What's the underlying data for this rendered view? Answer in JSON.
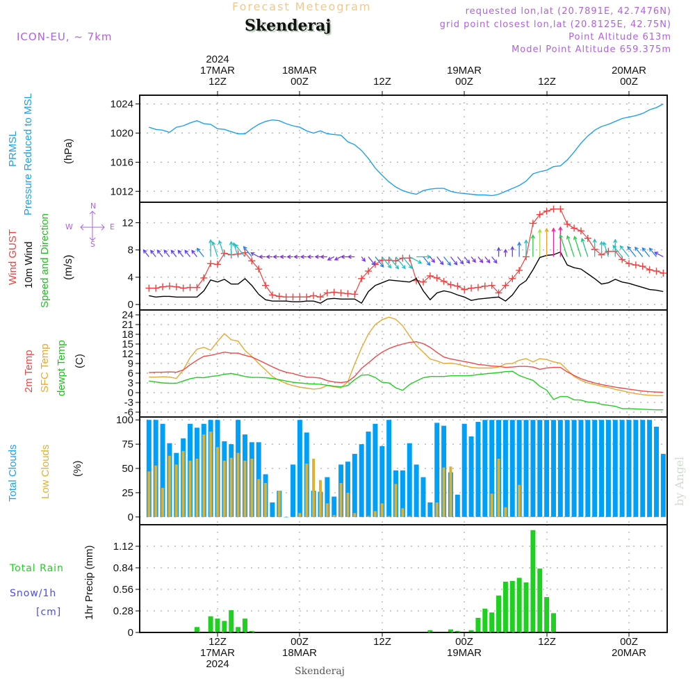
{
  "header": {
    "title": "Forecast Meteogram",
    "station": "Skenderaj",
    "model": "ICON-EU, ~ 7km",
    "requested": "requested lon,lat (20.7891E, 42.7476N)",
    "grid_point": "grid point closest lon,lat (20.8125E, 42.75N)",
    "point_altitude": "Point Altitude 613m",
    "model_altitude": "Model Point Altitude 659.375m"
  },
  "top_axis": [
    {
      "l1": "2024",
      "l2": "17MAR",
      "l3": "12Z"
    },
    {
      "l1": "",
      "l2": "18MAR",
      "l3": "00Z"
    },
    {
      "l1": "",
      "l2": "",
      "l3": "12Z"
    },
    {
      "l1": "",
      "l2": "19MAR",
      "l3": "00Z"
    },
    {
      "l1": "",
      "l2": "",
      "l3": "12Z"
    },
    {
      "l1": "",
      "l2": "20MAR",
      "l3": "00Z"
    }
  ],
  "bottom_axis": [
    {
      "l1": "12Z",
      "l2": "17MAR",
      "l3": "2024"
    },
    {
      "l1": "00Z",
      "l2": "18MAR",
      "l3": ""
    },
    {
      "l1": "12Z",
      "l2": "",
      "l3": ""
    },
    {
      "l1": "00Z",
      "l2": "19MAR",
      "l3": ""
    },
    {
      "l1": "12Z",
      "l2": "",
      "l3": ""
    },
    {
      "l1": "00Z",
      "l2": "20MAR",
      "l3": ""
    }
  ],
  "labels": {
    "prmsl": "PRMSL",
    "pressure": "Pressure Reduced to MSL",
    "hpa": "(hPa)",
    "gust": "Wind GUST",
    "wind10": "10m Wind",
    "speeddir": "Speed and Direction",
    "ms": "(m/s)",
    "t2m": "2m Temp",
    "tsfc": "SFC Temp",
    "dewpt": "dewpt Temp",
    "c": "(C)",
    "total_clouds": "Total Clouds",
    "low_clouds": "Low Clouds",
    "pct": "(%)",
    "total_rain": "Total   Rain",
    "snow": "Snow/1h",
    "cm": "[cm]",
    "precip": "1hr Precip (mm)",
    "compass_n": "N",
    "compass_s": "S",
    "compass_w": "W",
    "compass_e": "E",
    "footer_station": "Skenderaj",
    "watermark": "by Angel"
  },
  "colors": {
    "pressure": "#1ea0f0",
    "gust": "#f04040",
    "wind": "#000000",
    "t2m": "#f04848",
    "tsfc": "#e8a830",
    "dewpt": "#20d020",
    "total_clouds": "#00a0f8",
    "low_clouds": "#e0b030",
    "rain": "#20d020",
    "header": "#b060e0"
  },
  "chart_data": [
    {
      "type": "line",
      "title": "PRMSL Pressure Reduced to MSL",
      "ylabel": "(hPa)",
      "ylim": [
        1010.5,
        1025.2
      ],
      "yticks": [
        1012,
        1016,
        1020,
        1024
      ],
      "x_hours_start": "17MAR 02Z",
      "x_step_hours": 1,
      "series": [
        {
          "name": "PRMSL",
          "values": [
            1020.8,
            1020.5,
            1020.4,
            1020.1,
            1020.8,
            1021.0,
            1021.4,
            1021.7,
            1021.3,
            1021.2,
            1020.6,
            1020.5,
            1020.2,
            1019.9,
            1019.9,
            1020.6,
            1021.2,
            1021.6,
            1021.8,
            1021.7,
            1021.3,
            1021.0,
            1020.8,
            1020.3,
            1020.0,
            1020.3,
            1019.9,
            1019.8,
            1019.7,
            1018.8,
            1018.4,
            1017.6,
            1016.5,
            1015.2,
            1014.2,
            1013.3,
            1012.6,
            1012.1,
            1011.8,
            1011.6,
            1012.1,
            1012.3,
            1012.4,
            1012.4,
            1012.0,
            1011.8,
            1011.7,
            1011.6,
            1011.5,
            1011.5,
            1011.4,
            1011.6,
            1012.0,
            1012.4,
            1012.8,
            1013.4,
            1014.4,
            1014.7,
            1014.9,
            1015.4,
            1015.5,
            1016.3,
            1017.4,
            1018.6,
            1019.6,
            1020.4,
            1020.9,
            1021.2,
            1021.6,
            1022.0,
            1022.2,
            1022.4,
            1022.7,
            1023.2,
            1023.5,
            1024.0
          ]
        }
      ]
    },
    {
      "type": "line",
      "title": "Wind GUST / 10m Wind Speed and Direction",
      "ylabel": "(m/s)",
      "ylim": [
        -0.8,
        15.0
      ],
      "yticks": [
        0,
        4,
        8,
        12
      ],
      "series": [
        {
          "name": "Wind GUST",
          "values": [
            2.4,
            2.4,
            2.6,
            2.7,
            2.6,
            2.4,
            2.5,
            2.5,
            3.9,
            6.0,
            5.9,
            7.5,
            7.3,
            7.4,
            7.6,
            6.4,
            5.2,
            2.8,
            1.4,
            1.2,
            1.1,
            1.1,
            1.1,
            1.1,
            1.3,
            1.1,
            1.7,
            1.8,
            1.7,
            1.6,
            1.5,
            3.8,
            4.9,
            5.9,
            6.5,
            6.5,
            6.4,
            6.8,
            6.8,
            3.5,
            3.3,
            4.2,
            3.9,
            3.4,
            2.9,
            2.7,
            2.2,
            2.4,
            2.5,
            2.7,
            2.8,
            1.7,
            2.8,
            3.8,
            5.0,
            7.0,
            11.9,
            13.2,
            13.7,
            14.0,
            14.0,
            11.8,
            11.2,
            10.8,
            9.7,
            8.1,
            7.3,
            7.8,
            7.8,
            6.6,
            6.0,
            5.8,
            5.6,
            5.1,
            4.9,
            4.6
          ]
        },
        {
          "name": "10m Wind",
          "values": [
            1.3,
            1.1,
            1.2,
            1.2,
            1.1,
            1.1,
            1.1,
            1.1,
            2.0,
            3.6,
            3.3,
            3.7,
            3.0,
            3.0,
            3.8,
            2.8,
            1.5,
            0.7,
            0.5,
            0.5,
            0.5,
            0.4,
            0.4,
            0.5,
            0.5,
            0.2,
            0.8,
            0.9,
            0.8,
            0.8,
            0.8,
            0.2,
            1.9,
            2.8,
            3.2,
            3.6,
            3.5,
            3.4,
            3.3,
            3.8,
            2.0,
            0.7,
            1.7,
            2.0,
            1.8,
            1.4,
            1.1,
            0.6,
            0.8,
            0.9,
            1.0,
            1.1,
            0.5,
            1.4,
            2.8,
            3.5,
            5.1,
            6.9,
            7.2,
            7.3,
            7.7,
            5.8,
            5.4,
            5.2,
            4.5,
            3.8,
            3.0,
            3.2,
            3.7,
            3.3,
            3.1,
            2.8,
            2.5,
            2.2,
            2.1,
            1.9
          ]
        },
        {
          "name": "Direction",
          "values": [
            "NE",
            "NE",
            "NE",
            "NE",
            "NE",
            "NE",
            "NE",
            "NE",
            "NE",
            "N",
            "NNE",
            "NNE",
            "N",
            "NNE",
            "NE",
            "NE",
            "ENE",
            "E",
            "E",
            "E",
            "E",
            "E",
            "E",
            "E",
            "E",
            "E",
            "E",
            "ESE",
            "ESE",
            "E",
            "E",
            "SW",
            "SW",
            "SW",
            "SW",
            "SW",
            "SW",
            "SW",
            "WSW",
            "W",
            "SW",
            "SW",
            "SW",
            "SW",
            "SW",
            "SW",
            "SW",
            "SW",
            "SW",
            "SW",
            "SW",
            "N",
            "N",
            "N",
            "N",
            "N",
            "N",
            "N",
            "N",
            "N",
            "N",
            "NNE",
            "NNE",
            "NNE",
            "NNE",
            "N",
            "N",
            "NNE",
            "N",
            "NE",
            "NE",
            "NE",
            "NE",
            "NE",
            "NE",
            "ENE"
          ]
        }
      ]
    },
    {
      "type": "line",
      "title": "2m Temp / SFC Temp / dewpt Temp",
      "ylabel": "(C)",
      "ylim": [
        -7.5,
        25.5
      ],
      "yticks": [
        -6,
        -3,
        0,
        3,
        6,
        9,
        12,
        15,
        18,
        21,
        24
      ],
      "series": [
        {
          "name": "2m Temp",
          "values": [
            6.2,
            6.3,
            6.3,
            6.4,
            6.3,
            7.0,
            8.6,
            10.0,
            11.2,
            11.5,
            12.0,
            12.5,
            12.2,
            12.2,
            11.5,
            11.0,
            10.0,
            9.0,
            8.0,
            7.0,
            6.3,
            5.9,
            5.3,
            4.8,
            4.7,
            4.5,
            3.7,
            3.3,
            3.1,
            3.4,
            5.0,
            7.5,
            9.2,
            11.0,
            12.5,
            13.6,
            14.4,
            15.0,
            15.5,
            15.7,
            15.1,
            14.0,
            12.4,
            11.0,
            10.4,
            10.0,
            9.6,
            9.2,
            8.7,
            8.5,
            8.2,
            8.1,
            7.8,
            7.9,
            8.1,
            8.1,
            7.9,
            7.2,
            7.6,
            7.8,
            7.8,
            6.4,
            5.3,
            4.3,
            3.6,
            3.0,
            2.5,
            2.1,
            1.7,
            1.4,
            1.1,
            0.8,
            0.5,
            0.3,
            0.2,
            0.1
          ]
        },
        {
          "name": "SFC Temp",
          "values": [
            4.8,
            4.8,
            4.9,
            4.8,
            4.4,
            7.0,
            10.8,
            13.4,
            14.0,
            13.1,
            15.8,
            18.2,
            16.3,
            15.9,
            13.0,
            11.2,
            9.0,
            7.0,
            5.0,
            3.8,
            2.8,
            2.2,
            1.7,
            1.4,
            1.1,
            1.3,
            2.2,
            1.8,
            1.5,
            3.4,
            8.8,
            13.8,
            18.1,
            21.0,
            22.5,
            23.3,
            22.6,
            20.6,
            17.5,
            14.5,
            12.5,
            10.4,
            9.8,
            9.0,
            9.1,
            8.8,
            8.3,
            7.8,
            7.6,
            7.6,
            7.6,
            7.9,
            8.9,
            9.0,
            10.0,
            10.5,
            9.5,
            10.5,
            10.2,
            9.5,
            9.1,
            7.0,
            5.0,
            3.8,
            3.0,
            2.5,
            2.0,
            1.6,
            1.0,
            0.6,
            0.1,
            -0.3,
            -0.6,
            -0.8,
            -0.9,
            -0.9
          ]
        },
        {
          "name": "dewpt Temp",
          "values": [
            3.6,
            3.3,
            3.0,
            2.9,
            2.9,
            3.6,
            4.3,
            4.7,
            4.6,
            5.0,
            5.2,
            5.7,
            5.9,
            5.5,
            5.0,
            4.7,
            4.7,
            4.6,
            4.4,
            4.0,
            3.6,
            3.2,
            3.0,
            2.8,
            2.7,
            2.6,
            2.3,
            2.0,
            1.8,
            2.2,
            4.0,
            5.4,
            5.5,
            4.7,
            3.2,
            3.0,
            1.5,
            0.7,
            2.5,
            3.6,
            4.6,
            5.0,
            5.0,
            5.0,
            5.2,
            5.2,
            5.2,
            5.3,
            5.6,
            5.8,
            6.0,
            6.2,
            6.5,
            6.6,
            5.3,
            4.5,
            3.8,
            2.0,
            0.8,
            -2.1,
            -1.2,
            -1.2,
            -2.2,
            -2.3,
            -2.9,
            -3.0,
            -3.6,
            -3.9,
            -4.2,
            -4.9,
            -4.9,
            -5.0,
            -5.1,
            -5.2,
            -5.3,
            -5.3
          ]
        }
      ]
    },
    {
      "type": "bar",
      "title": "Total Clouds / Low Clouds",
      "ylabel": "(%)",
      "ylim": [
        -8,
        103
      ],
      "yticks": [
        0,
        25,
        50,
        75,
        100
      ],
      "series": [
        {
          "name": "Total Clouds",
          "values": [
            100,
            100,
            96,
            76,
            66,
            81,
            96,
            92,
            96,
            100,
            100,
            78,
            75,
            100,
            85,
            77,
            77,
            44,
            15,
            27,
            0,
            54,
            100,
            87,
            27,
            26,
            41,
            21,
            54,
            57,
            65,
            75,
            88,
            96,
            73,
            100,
            48,
            48,
            76,
            54,
            41,
            15,
            97,
            94,
            46,
            23,
            96,
            83,
            98,
            100,
            100,
            100,
            100,
            100,
            100,
            100,
            100,
            100,
            100,
            100,
            100,
            100,
            100,
            100,
            100,
            100,
            100,
            100,
            100,
            100,
            100,
            100,
            100,
            100,
            93,
            65
          ]
        },
        {
          "name": "Low Clouds",
          "values": [
            47,
            53,
            30,
            63,
            54,
            68,
            58,
            60,
            85,
            88,
            72,
            58,
            61,
            66,
            58,
            60,
            39,
            35,
            0,
            27,
            0,
            0,
            4,
            55,
            60,
            38,
            14,
            2,
            35,
            25,
            4,
            0,
            1,
            6,
            14,
            1,
            34,
            9,
            1,
            0,
            0,
            0,
            15,
            51,
            52,
            0,
            0,
            0,
            0,
            0,
            24,
            60,
            10,
            0,
            33,
            0,
            0,
            0,
            0,
            0,
            0,
            0,
            0,
            0,
            0,
            0,
            0,
            0,
            0,
            0,
            0,
            0,
            0,
            0,
            0,
            0
          ]
        }
      ]
    },
    {
      "type": "bar",
      "title": "1hr Precip",
      "ylabel": "1hr Precip (mm)",
      "ylim": [
        0,
        1.4
      ],
      "yticks": [
        0,
        0.28,
        0.56,
        0.84,
        1.12
      ],
      "series": [
        {
          "name": "Total Rain",
          "values": [
            0,
            0,
            0,
            0,
            0,
            0,
            0,
            0.07,
            0,
            0.21,
            0.18,
            0.15,
            0.29,
            0.07,
            0.18,
            0.02,
            0,
            0,
            0,
            0,
            0,
            0,
            0,
            0,
            0,
            0,
            0,
            0,
            0,
            0,
            0,
            0,
            0,
            0,
            0,
            0,
            0,
            0,
            0,
            0,
            0,
            0.03,
            0,
            0,
            0.04,
            0.02,
            0,
            0.03,
            0.19,
            0.31,
            0.26,
            0.48,
            0.66,
            0.67,
            0.71,
            0.65,
            1.33,
            0.83,
            0.46,
            0.25,
            0,
            0,
            0,
            0,
            0,
            0,
            0,
            0,
            0,
            0,
            0,
            0,
            0,
            0,
            0,
            0
          ]
        },
        {
          "name": "Snow/1h",
          "values": []
        }
      ]
    }
  ]
}
